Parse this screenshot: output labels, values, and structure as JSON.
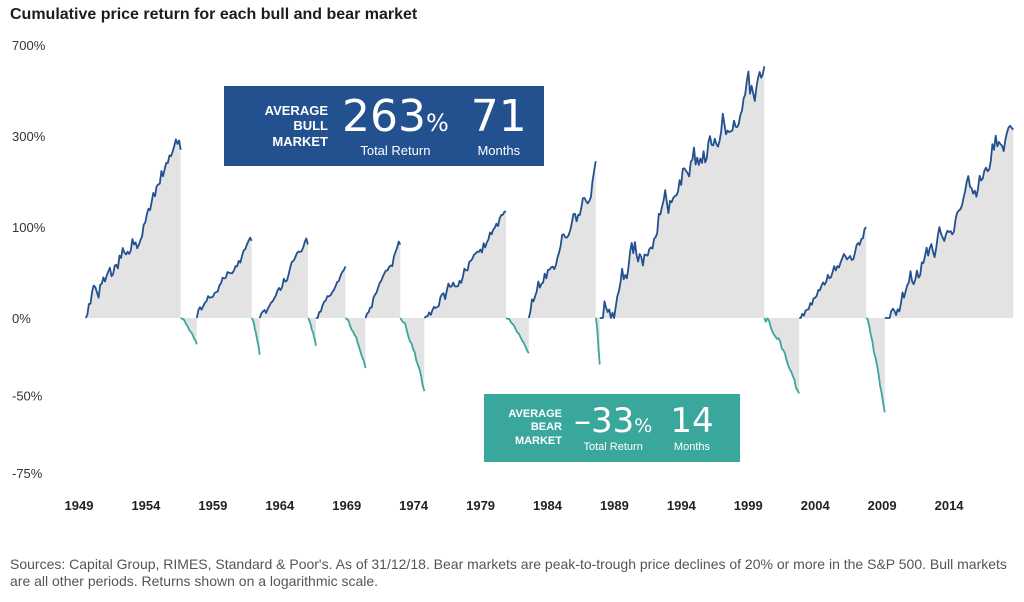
{
  "title": "Cumulative price return for each bull and bear market",
  "source": "Sources: Capital Group, RIMES, Standard & Poor's. As of 31/12/18. Bear markets are peak-to-trough price declines of 20% or more in the S&P 500. Bull markets are all other periods. Returns shown on a logarithmic scale.",
  "colors": {
    "bull": "#23508f",
    "bear": "#3aa79c",
    "fill": "#e3e3e3"
  },
  "bull_callout": {
    "label_line1": "AVERAGE",
    "label_line2": "BULL",
    "label_line3": "MARKET",
    "return_value": "263",
    "return_unit": "%",
    "return_caption": "Total Return",
    "months_value": "71",
    "months_caption": "Months"
  },
  "bear_callout": {
    "label_line1": "AVERAGE",
    "label_line2": "BEAR",
    "label_line3": "MARKET",
    "return_value": "–33",
    "return_unit": "%",
    "return_caption": "Total Return",
    "months_value": "14",
    "months_caption": "Months"
  },
  "chart_data": {
    "type": "area",
    "title": "Cumulative price return for each bull and bear market",
    "x_axis": {
      "range": [
        1949,
        2019
      ],
      "ticks": [
        "1949",
        "1954",
        "1959",
        "1964",
        "1969",
        "1974",
        "1979",
        "1984",
        "1989",
        "1994",
        "1999",
        "2004",
        "2009",
        "2014"
      ]
    },
    "y_axis": {
      "scale": "log",
      "ticks": [
        "700%",
        "300%",
        "100%",
        "0%",
        "-50%",
        "-75%"
      ]
    },
    "grid": false,
    "bull_markets": [
      {
        "start": 1949.5,
        "end": 1956.6,
        "return_pct": 260
      },
      {
        "start": 1957.8,
        "end": 1961.9,
        "return_pct": 80
      },
      {
        "start": 1962.5,
        "end": 1966.1,
        "return_pct": 75
      },
      {
        "start": 1966.7,
        "end": 1968.9,
        "return_pct": 48
      },
      {
        "start": 1970.4,
        "end": 1973.0,
        "return_pct": 75
      },
      {
        "start": 1974.8,
        "end": 1980.9,
        "return_pct": 125
      },
      {
        "start": 1982.6,
        "end": 1987.6,
        "return_pct": 230
      },
      {
        "start": 1987.9,
        "end": 2000.2,
        "return_pct": 580
      },
      {
        "start": 2002.8,
        "end": 2007.8,
        "return_pct": 100
      },
      {
        "start": 2009.2,
        "end": 2018.8,
        "return_pct": 320
      }
    ],
    "bear_markets": [
      {
        "start": 1956.6,
        "end": 1957.8,
        "return_pct": -21
      },
      {
        "start": 1961.9,
        "end": 1962.5,
        "return_pct": -28
      },
      {
        "start": 1966.1,
        "end": 1966.7,
        "return_pct": -22
      },
      {
        "start": 1968.9,
        "end": 1970.4,
        "return_pct": -36
      },
      {
        "start": 1973.0,
        "end": 1974.8,
        "return_pct": -48
      },
      {
        "start": 1980.9,
        "end": 1982.6,
        "return_pct": -27
      },
      {
        "start": 1987.6,
        "end": 1987.9,
        "return_pct": -34
      },
      {
        "start": 2000.2,
        "end": 2002.8,
        "return_pct": -49
      },
      {
        "start": 2007.8,
        "end": 2009.2,
        "return_pct": -57
      }
    ]
  }
}
